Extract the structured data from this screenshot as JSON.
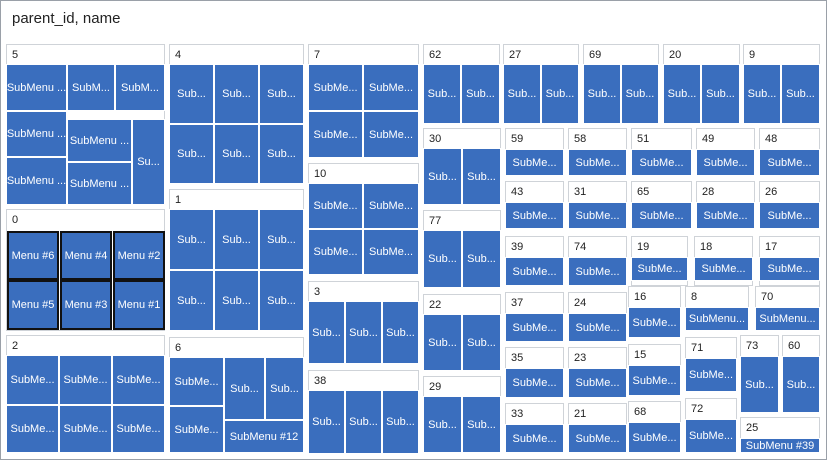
{
  "header": {
    "title": "parent_id, name"
  },
  "colors": {
    "cell": "#3a6ebe",
    "header_bg": "#ffffff",
    "border": "#cfd3d8"
  },
  "groups": [
    {
      "id": "5",
      "cells": [
        {
          "label": "SubMenu ..."
        },
        {
          "label": "SubM..."
        },
        {
          "label": "SubM..."
        },
        {
          "label": "SubMenu ..."
        },
        {
          "label": "SubMenu ..."
        },
        {
          "label": "Su..."
        },
        {
          "label": "SubMenu ..."
        },
        {
          "label": "SubMenu ..."
        }
      ]
    },
    {
      "id": "0",
      "cells": [
        {
          "label": "Menu #6"
        },
        {
          "label": "Menu #4"
        },
        {
          "label": "Menu #2"
        },
        {
          "label": "Menu #5"
        },
        {
          "label": "Menu #3"
        },
        {
          "label": "Menu #1"
        }
      ]
    },
    {
      "id": "2",
      "cells": [
        {
          "label": "SubMe..."
        },
        {
          "label": "SubMe..."
        },
        {
          "label": "SubMe..."
        },
        {
          "label": "SubMe..."
        },
        {
          "label": "SubMe..."
        },
        {
          "label": "SubMe..."
        }
      ]
    },
    {
      "id": "4",
      "cells": [
        {
          "label": "Sub..."
        },
        {
          "label": "Sub..."
        },
        {
          "label": "Sub..."
        },
        {
          "label": "Sub..."
        },
        {
          "label": "Sub..."
        },
        {
          "label": "Sub..."
        }
      ]
    },
    {
      "id": "1",
      "cells": [
        {
          "label": "Sub..."
        },
        {
          "label": "Sub..."
        },
        {
          "label": "Sub..."
        },
        {
          "label": "Sub..."
        },
        {
          "label": "Sub..."
        },
        {
          "label": "Sub..."
        }
      ]
    },
    {
      "id": "6",
      "cells": [
        {
          "label": "SubMe..."
        },
        {
          "label": "Sub..."
        },
        {
          "label": "Sub..."
        },
        {
          "label": "SubMe..."
        },
        {
          "label": "SubMenu #12"
        }
      ]
    },
    {
      "id": "7",
      "cells": [
        {
          "label": "SubMe..."
        },
        {
          "label": "SubMe..."
        },
        {
          "label": "SubMe..."
        },
        {
          "label": "SubMe..."
        }
      ]
    },
    {
      "id": "10",
      "cells": [
        {
          "label": "SubMe..."
        },
        {
          "label": "SubMe..."
        },
        {
          "label": "SubMe..."
        },
        {
          "label": "SubMe..."
        }
      ]
    },
    {
      "id": "3",
      "cells": [
        {
          "label": "Sub..."
        },
        {
          "label": "Sub..."
        },
        {
          "label": "Sub..."
        }
      ]
    },
    {
      "id": "38",
      "cells": [
        {
          "label": "Sub..."
        },
        {
          "label": "Sub..."
        },
        {
          "label": "Sub..."
        }
      ]
    },
    {
      "id": "62",
      "cells": [
        {
          "label": "Sub..."
        },
        {
          "label": "Sub..."
        }
      ]
    },
    {
      "id": "27",
      "cells": [
        {
          "label": "Sub..."
        },
        {
          "label": "Sub..."
        }
      ]
    },
    {
      "id": "69",
      "cells": [
        {
          "label": "Sub..."
        },
        {
          "label": "Sub..."
        }
      ]
    },
    {
      "id": "20",
      "cells": [
        {
          "label": "Sub..."
        },
        {
          "label": "Sub..."
        }
      ]
    },
    {
      "id": "9",
      "cells": [
        {
          "label": "Sub..."
        },
        {
          "label": "Sub..."
        }
      ]
    },
    {
      "id": "30",
      "cells": [
        {
          "label": "Sub..."
        },
        {
          "label": "Sub..."
        }
      ]
    },
    {
      "id": "77",
      "cells": [
        {
          "label": "Sub..."
        },
        {
          "label": "Sub..."
        }
      ]
    },
    {
      "id": "22",
      "cells": [
        {
          "label": "Sub..."
        },
        {
          "label": "Sub..."
        }
      ]
    },
    {
      "id": "29",
      "cells": [
        {
          "label": "Sub..."
        },
        {
          "label": "Sub..."
        }
      ]
    },
    {
      "id": "59",
      "cells": [
        {
          "label": "SubMe..."
        }
      ]
    },
    {
      "id": "58",
      "cells": [
        {
          "label": "SubMe..."
        }
      ]
    },
    {
      "id": "51",
      "cells": [
        {
          "label": "SubMe..."
        }
      ]
    },
    {
      "id": "49",
      "cells": [
        {
          "label": "SubMe..."
        }
      ]
    },
    {
      "id": "48",
      "cells": [
        {
          "label": "SubMe..."
        }
      ]
    },
    {
      "id": "43",
      "cells": [
        {
          "label": "SubMe..."
        }
      ]
    },
    {
      "id": "31",
      "cells": [
        {
          "label": "SubMe..."
        }
      ]
    },
    {
      "id": "65",
      "cells": [
        {
          "label": "SubMe..."
        }
      ]
    },
    {
      "id": "28",
      "cells": [
        {
          "label": "SubMe..."
        }
      ]
    },
    {
      "id": "26",
      "cells": [
        {
          "label": "SubMe..."
        }
      ]
    },
    {
      "id": "39",
      "cells": [
        {
          "label": "SubMe..."
        }
      ]
    },
    {
      "id": "74",
      "cells": [
        {
          "label": "SubMe..."
        }
      ]
    },
    {
      "id": "19",
      "cells": [
        {
          "label": "SubMe..."
        }
      ]
    },
    {
      "id": "18",
      "cells": [
        {
          "label": "SubMe..."
        }
      ]
    },
    {
      "id": "17",
      "cells": [
        {
          "label": "SubMe..."
        }
      ]
    },
    {
      "id": "37",
      "cells": [
        {
          "label": "SubMe..."
        }
      ]
    },
    {
      "id": "24",
      "cells": [
        {
          "label": "SubMe..."
        }
      ]
    },
    {
      "id": "16",
      "cells": [
        {
          "label": "SubMe..."
        }
      ]
    },
    {
      "id": "8",
      "cells": [
        {
          "label": "SubMenu..."
        }
      ]
    },
    {
      "id": "70",
      "cells": [
        {
          "label": "SubMenu..."
        }
      ]
    },
    {
      "id": "35",
      "cells": [
        {
          "label": "SubMe..."
        }
      ]
    },
    {
      "id": "23",
      "cells": [
        {
          "label": "SubMe..."
        }
      ]
    },
    {
      "id": "15",
      "cells": [
        {
          "label": "SubMe..."
        }
      ]
    },
    {
      "id": "71",
      "cells": [
        {
          "label": "SubMe..."
        }
      ]
    },
    {
      "id": "73",
      "cells": [
        {
          "label": "Sub..."
        }
      ]
    },
    {
      "id": "60",
      "cells": [
        {
          "label": "Sub..."
        }
      ]
    },
    {
      "id": "33",
      "cells": [
        {
          "label": "SubMe..."
        }
      ]
    },
    {
      "id": "21",
      "cells": [
        {
          "label": "SubMe..."
        }
      ]
    },
    {
      "id": "68",
      "cells": [
        {
          "label": "SubMe..."
        }
      ]
    },
    {
      "id": "72",
      "cells": [
        {
          "label": "SubMe..."
        }
      ]
    },
    {
      "id": "25",
      "cells": [
        {
          "label": "SubMenu #39"
        }
      ]
    }
  ]
}
